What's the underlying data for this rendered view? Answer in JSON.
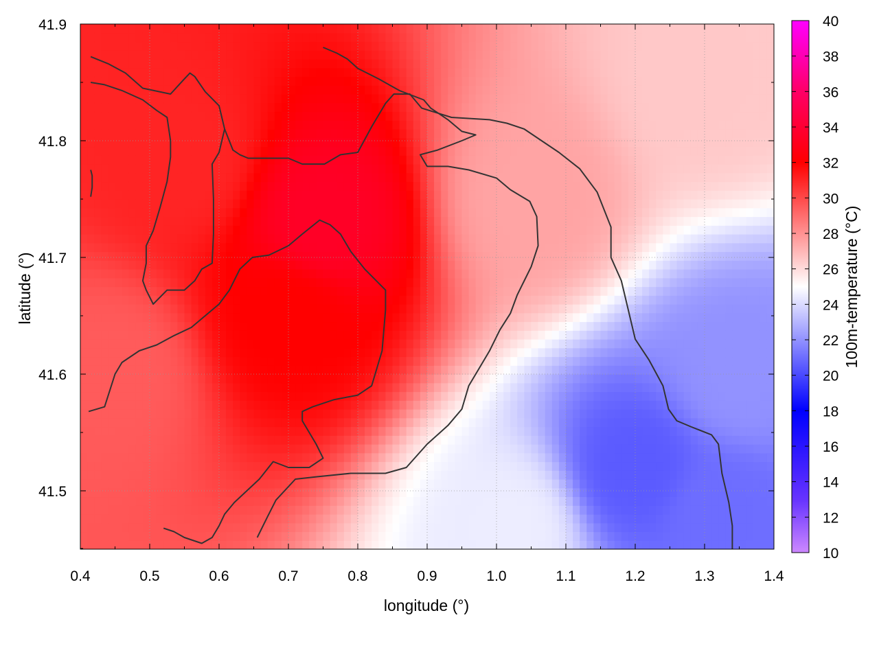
{
  "chart_data": {
    "type": "heatmap",
    "title": "",
    "xlabel": "longitude (°)",
    "ylabel": "latitude (°)",
    "colorbar_label": "100m-temperature (°C)",
    "xlim": [
      0.4,
      1.4
    ],
    "ylim": [
      41.45,
      41.9
    ],
    "zlim": [
      10,
      40
    ],
    "x_ticks": [
      "0.4",
      "0.5",
      "0.6",
      "0.7",
      "0.8",
      "0.9",
      "1.0",
      "1.1",
      "1.2",
      "1.3",
      "1.4"
    ],
    "y_ticks": [
      "41.5",
      "41.6",
      "41.7",
      "41.8",
      "41.9"
    ],
    "colorbar_ticks": [
      "10",
      "12",
      "14",
      "16",
      "18",
      "20",
      "22",
      "24",
      "26",
      "28",
      "30",
      "32",
      "34",
      "36",
      "38",
      "40"
    ],
    "grid": true,
    "colormap": [
      {
        "value": 10,
        "color": "#cc88ff"
      },
      {
        "value": 13,
        "color": "#6633ff"
      },
      {
        "value": 18,
        "color": "#0000ff"
      },
      {
        "value": 25,
        "color": "#ffffff"
      },
      {
        "value": 32,
        "color": "#ff0000"
      },
      {
        "value": 36,
        "color": "#ff0066"
      },
      {
        "value": 40,
        "color": "#ff00ff"
      }
    ],
    "temperature_hotspots": [
      {
        "lon": 0.75,
        "lat": 41.73,
        "temp": 33.5
      },
      {
        "lon": 0.7,
        "lat": 41.65,
        "temp": 32
      },
      {
        "lon": 0.55,
        "lat": 41.78,
        "temp": 31
      },
      {
        "lon": 0.45,
        "lat": 41.6,
        "temp": 29.5
      },
      {
        "lon": 1.05,
        "lat": 41.75,
        "temp": 27.5
      },
      {
        "lon": 1.3,
        "lat": 41.85,
        "temp": 26.5
      },
      {
        "lon": 1.02,
        "lat": 41.47,
        "temp": 24.5
      },
      {
        "lon": 1.2,
        "lat": 41.52,
        "temp": 20.5
      },
      {
        "lon": 1.32,
        "lat": 41.48,
        "temp": 21
      },
      {
        "lon": 1.35,
        "lat": 41.6,
        "temp": 22
      }
    ],
    "contour_color": "#333333",
    "contours": [
      [
        [
          0.415,
          41.872
        ],
        [
          0.44,
          41.866
        ],
        [
          0.465,
          41.858
        ],
        [
          0.49,
          41.845
        ],
        [
          0.53,
          41.84
        ],
        [
          0.55,
          41.853
        ],
        [
          0.558,
          41.858
        ],
        [
          0.565,
          41.855
        ],
        [
          0.58,
          41.842
        ],
        [
          0.6,
          41.83
        ],
        [
          0.608,
          41.81
        ],
        [
          0.62,
          41.792
        ],
        [
          0.63,
          41.788
        ],
        [
          0.642,
          41.785
        ],
        [
          0.7,
          41.785
        ],
        [
          0.72,
          41.78
        ],
        [
          0.752,
          41.78
        ],
        [
          0.775,
          41.788
        ],
        [
          0.8,
          41.79
        ],
        [
          0.82,
          41.812
        ],
        [
          0.84,
          41.832
        ],
        [
          0.852,
          41.84
        ],
        [
          0.875,
          41.84
        ],
        [
          0.892,
          41.828
        ],
        [
          0.935,
          41.82
        ],
        [
          0.99,
          41.818
        ],
        [
          1.015,
          41.815
        ],
        [
          1.04,
          41.81
        ],
        [
          1.09,
          41.79
        ],
        [
          1.12,
          41.776
        ],
        [
          1.145,
          41.756
        ],
        [
          1.165,
          41.726
        ],
        [
          1.165,
          41.7
        ],
        [
          1.18,
          41.68
        ],
        [
          1.2,
          41.63
        ],
        [
          1.22,
          41.612
        ],
        [
          1.24,
          41.59
        ],
        [
          1.248,
          41.57
        ],
        [
          1.26,
          41.56
        ],
        [
          1.28,
          41.555
        ],
        [
          1.31,
          41.548
        ],
        [
          1.32,
          41.54
        ],
        [
          1.325,
          41.515
        ],
        [
          1.335,
          41.49
        ],
        [
          1.34,
          41.47
        ],
        [
          1.34,
          41.45
        ]
      ],
      [
        [
          0.415,
          41.85
        ],
        [
          0.435,
          41.848
        ],
        [
          0.46,
          41.843
        ],
        [
          0.49,
          41.835
        ],
        [
          0.51,
          41.826
        ],
        [
          0.525,
          41.82
        ],
        [
          0.53,
          41.8
        ],
        [
          0.53,
          41.786
        ],
        [
          0.525,
          41.765
        ],
        [
          0.515,
          41.743
        ],
        [
          0.505,
          41.723
        ],
        [
          0.495,
          41.71
        ],
        [
          0.495,
          41.695
        ],
        [
          0.49,
          41.68
        ],
        [
          0.495,
          41.672
        ],
        [
          0.505,
          41.66
        ],
        [
          0.525,
          41.672
        ],
        [
          0.55,
          41.672
        ],
        [
          0.565,
          41.68
        ],
        [
          0.575,
          41.69
        ],
        [
          0.59,
          41.695
        ],
        [
          0.592,
          41.72
        ],
        [
          0.592,
          41.75
        ],
        [
          0.59,
          41.78
        ],
        [
          0.6,
          41.79
        ],
        [
          0.608,
          41.81
        ]
      ],
      [
        [
          0.415,
          41.775
        ],
        [
          0.417,
          41.77
        ],
        [
          0.417,
          41.76
        ],
        [
          0.415,
          41.752
        ]
      ],
      [
        [
          0.412,
          41.568
        ],
        [
          0.435,
          41.572
        ],
        [
          0.45,
          41.6
        ],
        [
          0.46,
          41.61
        ],
        [
          0.485,
          41.62
        ],
        [
          0.51,
          41.625
        ],
        [
          0.535,
          41.633
        ],
        [
          0.56,
          41.64
        ],
        [
          0.58,
          41.65
        ],
        [
          0.6,
          41.66
        ],
        [
          0.615,
          41.672
        ],
        [
          0.63,
          41.69
        ],
        [
          0.648,
          41.7
        ],
        [
          0.672,
          41.702
        ],
        [
          0.7,
          41.71
        ],
        [
          0.72,
          41.72
        ],
        [
          0.745,
          41.732
        ],
        [
          0.76,
          41.728
        ],
        [
          0.775,
          41.72
        ],
        [
          0.79,
          41.705
        ],
        [
          0.81,
          41.69
        ],
        [
          0.84,
          41.672
        ],
        [
          0.84,
          41.655
        ],
        [
          0.835,
          41.62
        ],
        [
          0.82,
          41.59
        ],
        [
          0.8,
          41.582
        ],
        [
          0.765,
          41.578
        ],
        [
          0.735,
          41.572
        ],
        [
          0.72,
          41.568
        ],
        [
          0.72,
          41.56
        ],
        [
          0.74,
          41.54
        ],
        [
          0.75,
          41.528
        ],
        [
          0.73,
          41.52
        ],
        [
          0.7,
          41.52
        ],
        [
          0.678,
          41.525
        ],
        [
          0.658,
          41.51
        ],
        [
          0.64,
          41.5
        ],
        [
          0.622,
          41.49
        ],
        [
          0.608,
          41.48
        ],
        [
          0.6,
          41.47
        ],
        [
          0.59,
          41.46
        ],
        [
          0.575,
          41.455
        ],
        [
          0.55,
          41.46
        ],
        [
          0.535,
          41.465
        ],
        [
          0.52,
          41.468
        ]
      ],
      [
        [
          0.655,
          41.46
        ],
        [
          0.67,
          41.478
        ],
        [
          0.682,
          41.492
        ],
        [
          0.71,
          41.51
        ],
        [
          0.74,
          41.512
        ],
        [
          0.79,
          41.515
        ],
        [
          0.84,
          41.515
        ],
        [
          0.87,
          41.52
        ],
        [
          0.9,
          41.54
        ],
        [
          0.93,
          41.556
        ],
        [
          0.95,
          41.57
        ],
        [
          0.96,
          41.59
        ],
        [
          0.975,
          41.605
        ],
        [
          0.99,
          41.62
        ],
        [
          1.005,
          41.638
        ],
        [
          1.02,
          41.652
        ],
        [
          1.03,
          41.668
        ],
        [
          1.04,
          41.68
        ],
        [
          1.05,
          41.692
        ],
        [
          1.06,
          41.71
        ],
        [
          1.058,
          41.735
        ],
        [
          1.048,
          41.748
        ],
        [
          1.02,
          41.758
        ],
        [
          1.0,
          41.768
        ],
        [
          0.96,
          41.775
        ],
        [
          0.93,
          41.778
        ],
        [
          0.912,
          41.778
        ],
        [
          0.9,
          41.778
        ],
        [
          0.89,
          41.788
        ],
        [
          0.915,
          41.792
        ],
        [
          0.95,
          41.8
        ],
        [
          0.97,
          41.805
        ],
        [
          0.95,
          41.808
        ],
        [
          0.93,
          41.818
        ],
        [
          0.905,
          41.828
        ],
        [
          0.895,
          41.835
        ],
        [
          0.86,
          41.843
        ],
        [
          0.83,
          41.853
        ],
        [
          0.8,
          41.862
        ],
        [
          0.785,
          41.87
        ],
        [
          0.77,
          41.875
        ],
        [
          0.75,
          41.88
        ]
      ]
    ],
    "colorbar_range": [
      10,
      40
    ]
  }
}
